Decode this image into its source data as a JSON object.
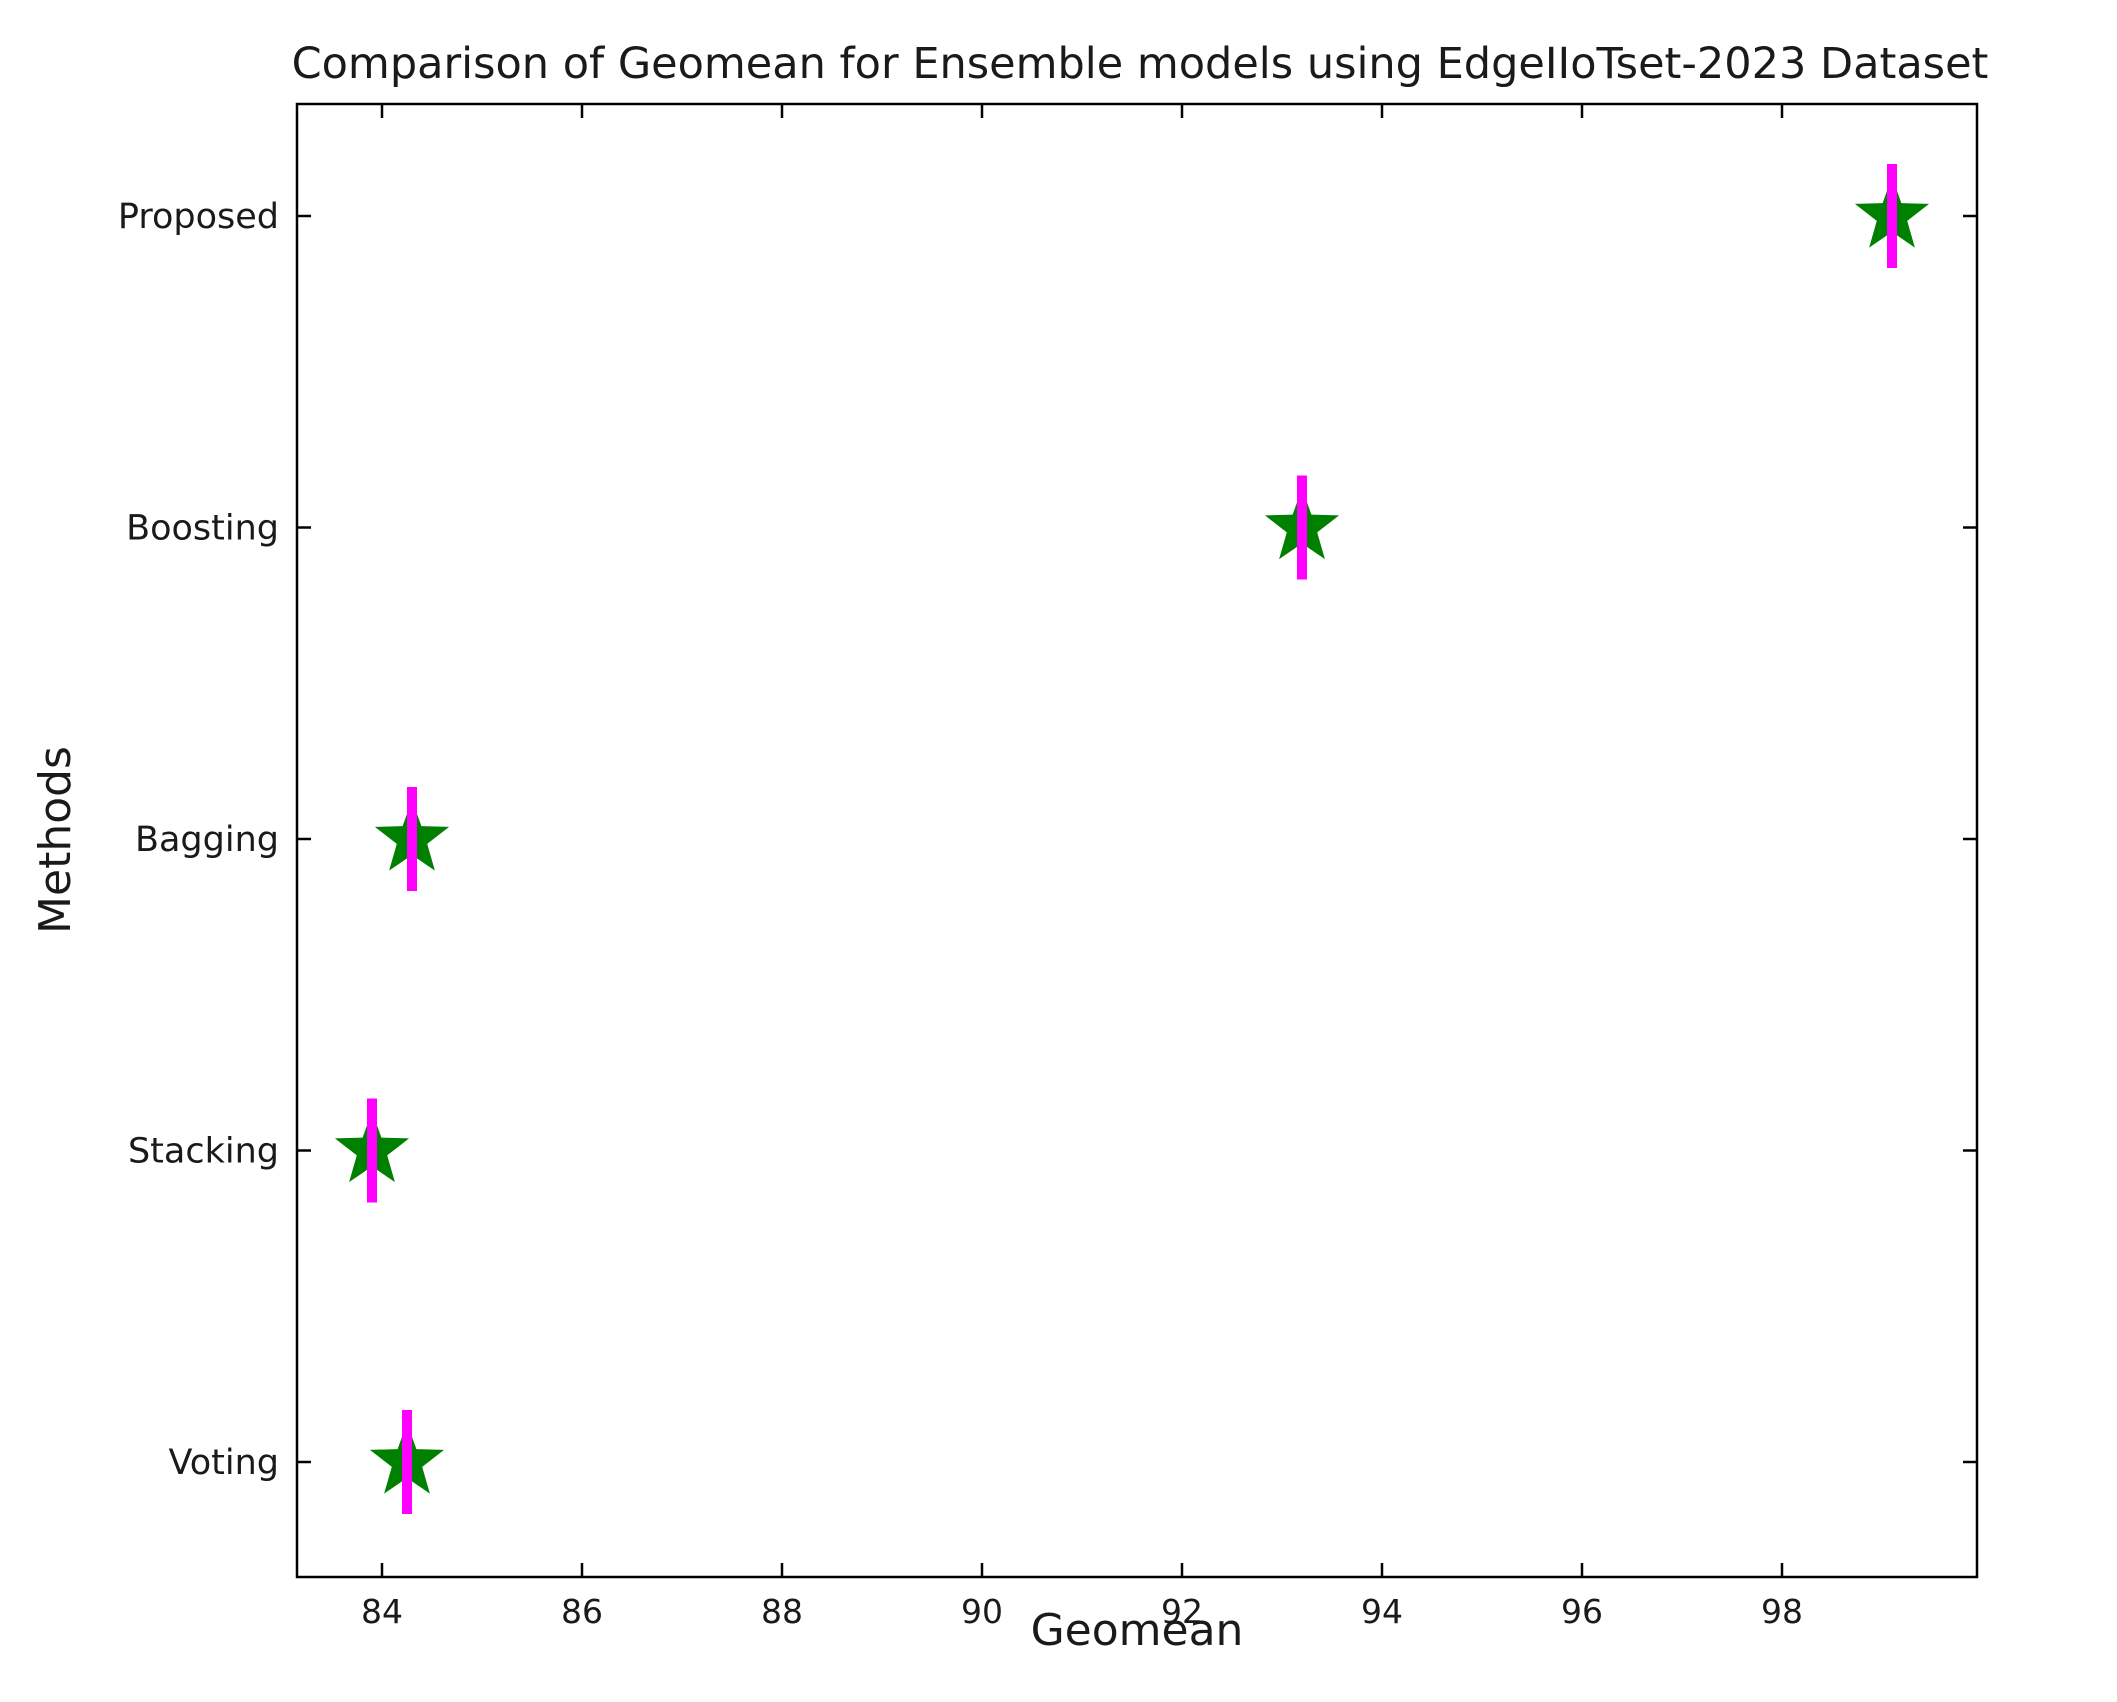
{
  "chart_data": {
    "type": "scatter",
    "title": "Comparison of Geomean for Ensemble models using EdgeIIoTset-2023 Dataset",
    "xlabel": "Geomean",
    "ylabel": "Methods",
    "categories": [
      "Voting",
      "Stacking",
      "Bagging",
      "Boosting",
      "Proposed"
    ],
    "values": [
      84.25,
      83.9,
      84.3,
      93.2,
      99.1
    ],
    "xlim": [
      83.15,
      99.95
    ],
    "xticks": [
      84,
      86,
      88,
      90,
      92,
      94,
      96,
      98
    ],
    "grid": false,
    "marker": "star",
    "colors": {
      "marker": "#008000",
      "error_bar": "#ff00ff"
    }
  }
}
